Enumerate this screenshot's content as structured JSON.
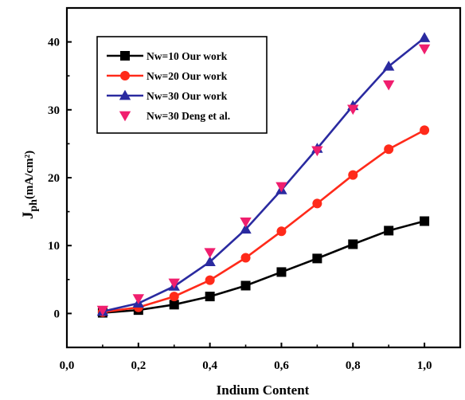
{
  "chart_data": {
    "type": "line",
    "title": "",
    "xlabel": "Indium Content",
    "ylabel_main": "J",
    "ylabel_sub": "ph",
    "ylabel_unit": "(mA/cm²)",
    "xlim": [
      0.0,
      1.1
    ],
    "ylim": [
      -5,
      45
    ],
    "xticks": [
      0.0,
      0.2,
      0.4,
      0.6,
      0.8,
      1.0
    ],
    "xtick_labels": [
      "0,0",
      "0,2",
      "0,4",
      "0,6",
      "0,8",
      "1,0"
    ],
    "yticks": [
      0,
      10,
      20,
      30,
      40
    ],
    "ytick_labels": [
      "0",
      "10",
      "20",
      "30",
      "40"
    ],
    "grid": false,
    "legend_position": "top-left",
    "series": [
      {
        "name": "Nw=10  Our work",
        "color": "#000000",
        "marker": "square",
        "line": true,
        "x": [
          0.1,
          0.2,
          0.3,
          0.4,
          0.5,
          0.6,
          0.7,
          0.8,
          0.9,
          1.0
        ],
        "y": [
          0.1,
          0.5,
          1.3,
          2.5,
          4.1,
          6.1,
          8.1,
          10.2,
          12.2,
          13.6
        ]
      },
      {
        "name": "Nw=20  Our work",
        "color": "#ff2a1a",
        "marker": "circle",
        "line": true,
        "x": [
          0.1,
          0.2,
          0.3,
          0.4,
          0.5,
          0.6,
          0.7,
          0.8,
          0.9,
          1.0
        ],
        "y": [
          0.2,
          0.9,
          2.5,
          4.9,
          8.2,
          12.1,
          16.2,
          20.4,
          24.2,
          27.0
        ]
      },
      {
        "name": "Nw=30  Our work",
        "color": "#2a2aa0",
        "marker": "triangle-up",
        "line": true,
        "x": [
          0.1,
          0.2,
          0.3,
          0.4,
          0.5,
          0.6,
          0.7,
          0.8,
          0.9,
          1.0
        ],
        "y": [
          0.3,
          1.5,
          4.0,
          7.6,
          12.4,
          18.2,
          24.3,
          30.6,
          36.4,
          40.6
        ]
      },
      {
        "name": "Nw=30  Deng et al.",
        "color": "#f01e6e",
        "marker": "triangle-down",
        "line": false,
        "x": [
          0.1,
          0.2,
          0.3,
          0.4,
          0.5,
          0.6,
          0.7,
          0.8,
          0.9,
          1.0
        ],
        "y": [
          0.5,
          2.2,
          4.5,
          9.0,
          13.5,
          18.7,
          24.0,
          30.1,
          33.7,
          39.0
        ]
      }
    ]
  }
}
